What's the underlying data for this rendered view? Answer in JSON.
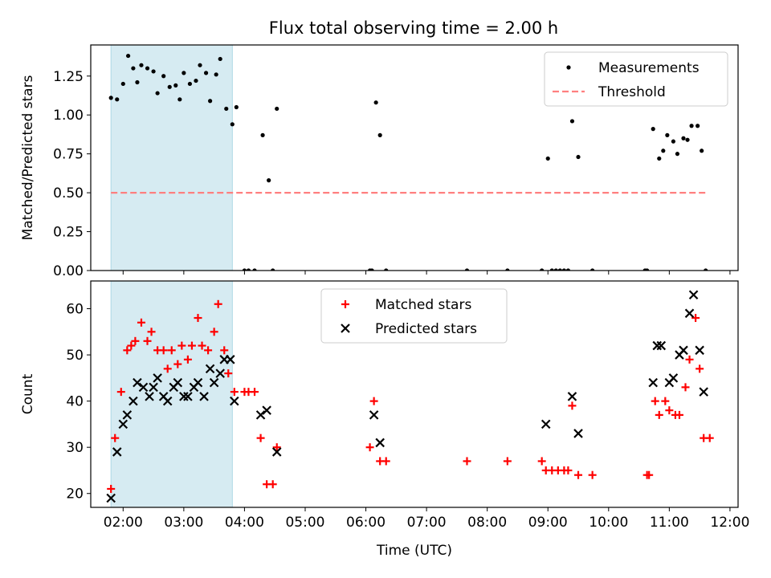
{
  "chart_data": [
    {
      "type": "scatter",
      "title": "Flux total observing time = 2.00 h",
      "xlabel": "",
      "ylabel": "Matched/Predicted stars",
      "xlim": [
        "01:28",
        "12:08"
      ],
      "ylim": [
        0,
        1.45
      ],
      "yticks": [
        "0.00",
        "0.25",
        "0.50",
        "0.75",
        "1.00",
        "1.25"
      ],
      "xticks": [
        "02:00",
        "03:00",
        "04:00",
        "05:00",
        "06:00",
        "07:00",
        "08:00",
        "09:00",
        "10:00",
        "11:00",
        "12:00"
      ],
      "show_xtick_labels": false,
      "highlight_span": [
        "01:48",
        "03:48"
      ],
      "legend": {
        "placement": "upper right",
        "entries": [
          "Measurements",
          "Threshold"
        ]
      },
      "series": [
        {
          "name": "Measurements",
          "marker": "dot",
          "color": "#000000",
          "points": [
            [
              "01:48",
              1.11
            ],
            [
              "01:54",
              1.1
            ],
            [
              "02:00",
              1.2
            ],
            [
              "02:05",
              1.38
            ],
            [
              "02:10",
              1.3
            ],
            [
              "02:14",
              1.21
            ],
            [
              "02:18",
              1.32
            ],
            [
              "02:24",
              1.3
            ],
            [
              "02:30",
              1.28
            ],
            [
              "02:34",
              1.14
            ],
            [
              "02:40",
              1.25
            ],
            [
              "02:46",
              1.18
            ],
            [
              "02:52",
              1.19
            ],
            [
              "02:56",
              1.1
            ],
            [
              "03:00",
              1.27
            ],
            [
              "03:06",
              1.2
            ],
            [
              "03:12",
              1.22
            ],
            [
              "03:16",
              1.32
            ],
            [
              "03:22",
              1.27
            ],
            [
              "03:26",
              1.09
            ],
            [
              "03:32",
              1.26
            ],
            [
              "03:36",
              1.36
            ],
            [
              "03:42",
              1.04
            ],
            [
              "03:48",
              0.94
            ],
            [
              "03:52",
              1.05
            ],
            [
              "04:00",
              0.0
            ],
            [
              "04:04",
              0.0
            ],
            [
              "04:10",
              0.0
            ],
            [
              "04:18",
              0.87
            ],
            [
              "04:24",
              0.58
            ],
            [
              "04:28",
              0.0
            ],
            [
              "04:32",
              1.04
            ],
            [
              "06:04",
              0.0
            ],
            [
              "06:06",
              0.0
            ],
            [
              "06:10",
              1.08
            ],
            [
              "06:14",
              0.87
            ],
            [
              "06:20",
              0.0
            ],
            [
              "07:40",
              0.0
            ],
            [
              "08:20",
              0.0
            ],
            [
              "08:54",
              0.0
            ],
            [
              "09:00",
              0.72
            ],
            [
              "09:04",
              0.0
            ],
            [
              "09:08",
              0.0
            ],
            [
              "09:12",
              0.0
            ],
            [
              "09:16",
              0.0
            ],
            [
              "09:20",
              0.0
            ],
            [
              "09:24",
              0.96
            ],
            [
              "09:30",
              0.73
            ],
            [
              "09:44",
              0.0
            ],
            [
              "10:36",
              0.0
            ],
            [
              "10:38",
              0.0
            ],
            [
              "10:44",
              0.91
            ],
            [
              "10:50",
              0.72
            ],
            [
              "10:54",
              0.77
            ],
            [
              "10:58",
              0.87
            ],
            [
              "11:04",
              0.83
            ],
            [
              "11:08",
              0.75
            ],
            [
              "11:14",
              0.85
            ],
            [
              "11:18",
              0.84
            ],
            [
              "11:22",
              0.93
            ],
            [
              "11:28",
              0.93
            ],
            [
              "11:32",
              0.77
            ],
            [
              "11:36",
              0.0
            ]
          ]
        },
        {
          "name": "Threshold",
          "marker": "dashed-line",
          "color": "#ff7f7f",
          "points": [
            [
              "01:48",
              0.5
            ],
            [
              "11:36",
              0.5
            ]
          ]
        }
      ]
    },
    {
      "type": "scatter",
      "title": "",
      "xlabel": "Time (UTC)",
      "ylabel": "Count",
      "xlim": [
        "01:28",
        "12:08"
      ],
      "ylim": [
        17,
        66
      ],
      "yticks": [
        "20",
        "30",
        "40",
        "50",
        "60"
      ],
      "xticks": [
        "02:00",
        "03:00",
        "04:00",
        "05:00",
        "06:00",
        "07:00",
        "08:00",
        "09:00",
        "10:00",
        "11:00",
        "12:00"
      ],
      "show_xtick_labels": true,
      "highlight_span": [
        "01:48",
        "03:48"
      ],
      "legend": {
        "placement": "upper center",
        "entries": [
          "Matched stars",
          "Predicted stars"
        ]
      },
      "series": [
        {
          "name": "Matched stars",
          "marker": "plus",
          "color": "#ff0000",
          "points": [
            [
              "01:48",
              21
            ],
            [
              "01:52",
              32
            ],
            [
              "01:58",
              42
            ],
            [
              "02:04",
              51
            ],
            [
              "02:08",
              52
            ],
            [
              "02:12",
              53
            ],
            [
              "02:18",
              57
            ],
            [
              "02:24",
              53
            ],
            [
              "02:28",
              55
            ],
            [
              "02:34",
              51
            ],
            [
              "02:40",
              51
            ],
            [
              "02:44",
              47
            ],
            [
              "02:48",
              51
            ],
            [
              "02:54",
              48
            ],
            [
              "02:58",
              52
            ],
            [
              "03:04",
              49
            ],
            [
              "03:08",
              52
            ],
            [
              "03:14",
              58
            ],
            [
              "03:18",
              52
            ],
            [
              "03:24",
              51
            ],
            [
              "03:30",
              55
            ],
            [
              "03:34",
              61
            ],
            [
              "03:40",
              51
            ],
            [
              "03:44",
              46
            ],
            [
              "03:50",
              42
            ],
            [
              "04:00",
              42
            ],
            [
              "04:04",
              42
            ],
            [
              "04:10",
              42
            ],
            [
              "04:16",
              32
            ],
            [
              "04:22",
              22
            ],
            [
              "04:28",
              22
            ],
            [
              "04:32",
              30
            ],
            [
              "06:04",
              30
            ],
            [
              "06:08",
              40
            ],
            [
              "06:14",
              27
            ],
            [
              "06:20",
              27
            ],
            [
              "07:40",
              27
            ],
            [
              "08:20",
              27
            ],
            [
              "08:54",
              27
            ],
            [
              "08:58",
              25
            ],
            [
              "09:04",
              25
            ],
            [
              "09:10",
              25
            ],
            [
              "09:16",
              25
            ],
            [
              "09:20",
              25
            ],
            [
              "09:24",
              39
            ],
            [
              "09:30",
              24
            ],
            [
              "09:44",
              24
            ],
            [
              "10:38",
              24
            ],
            [
              "10:40",
              24
            ],
            [
              "10:46",
              40
            ],
            [
              "10:50",
              37
            ],
            [
              "10:56",
              40
            ],
            [
              "11:00",
              38
            ],
            [
              "11:06",
              37
            ],
            [
              "11:10",
              37
            ],
            [
              "11:16",
              43
            ],
            [
              "11:20",
              49
            ],
            [
              "11:26",
              58
            ],
            [
              "11:30",
              47
            ],
            [
              "11:34",
              32
            ],
            [
              "11:40",
              32
            ]
          ]
        },
        {
          "name": "Predicted stars",
          "marker": "cross",
          "color": "#000000",
          "points": [
            [
              "01:48",
              19
            ],
            [
              "01:54",
              29
            ],
            [
              "02:00",
              35
            ],
            [
              "02:04",
              37
            ],
            [
              "02:10",
              40
            ],
            [
              "02:14",
              44
            ],
            [
              "02:20",
              43
            ],
            [
              "02:26",
              41
            ],
            [
              "02:30",
              43
            ],
            [
              "02:34",
              45
            ],
            [
              "02:40",
              41
            ],
            [
              "02:44",
              40
            ],
            [
              "02:50",
              43
            ],
            [
              "02:54",
              44
            ],
            [
              "03:00",
              41
            ],
            [
              "03:04",
              41
            ],
            [
              "03:10",
              43
            ],
            [
              "03:14",
              44
            ],
            [
              "03:20",
              41
            ],
            [
              "03:26",
              47
            ],
            [
              "03:30",
              44
            ],
            [
              "03:36",
              46
            ],
            [
              "03:40",
              49
            ],
            [
              "03:46",
              49
            ],
            [
              "03:50",
              40
            ],
            [
              "04:16",
              37
            ],
            [
              "04:22",
              38
            ],
            [
              "04:32",
              29
            ],
            [
              "06:08",
              37
            ],
            [
              "06:14",
              31
            ],
            [
              "08:58",
              35
            ],
            [
              "09:24",
              41
            ],
            [
              "09:30",
              33
            ],
            [
              "10:44",
              44
            ],
            [
              "10:48",
              52
            ],
            [
              "10:52",
              52
            ],
            [
              "11:00",
              44
            ],
            [
              "11:04",
              45
            ],
            [
              "11:10",
              50
            ],
            [
              "11:14",
              51
            ],
            [
              "11:20",
              59
            ],
            [
              "11:24",
              63
            ],
            [
              "11:30",
              51
            ],
            [
              "11:34",
              42
            ]
          ]
        }
      ]
    }
  ],
  "colors": {
    "span_fill": "#add8e6",
    "threshold": "#ff7f7f",
    "matched": "#ff0000",
    "predicted": "#000000",
    "measurements": "#000000"
  }
}
